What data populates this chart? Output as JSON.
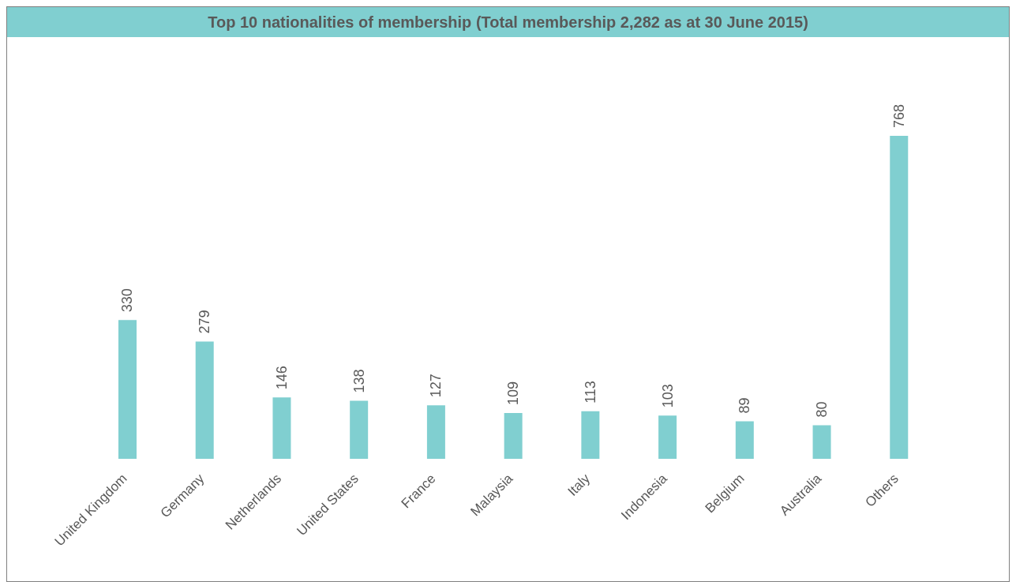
{
  "chart_data": {
    "type": "bar",
    "title": "Top 10 nationalities of membership (Total membership 2,282 as at 30 June 2015)",
    "categories": [
      "United Kingdom",
      "Germany",
      "Netherlands",
      "United States",
      "France",
      "Malaysia",
      "Italy",
      "Indonesia",
      "Belgium",
      "Australia",
      "Others"
    ],
    "values": [
      330,
      279,
      146,
      138,
      127,
      109,
      113,
      103,
      89,
      80,
      768
    ],
    "color": "#80cfd0",
    "data_labels": true,
    "grid": false
  }
}
